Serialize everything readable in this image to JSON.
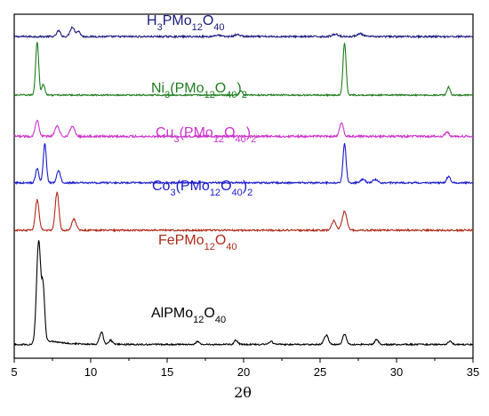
{
  "chart_data": {
    "type": "line",
    "xlabel": "2θ",
    "ylabel": "",
    "xlim": [
      5,
      35
    ],
    "x_ticks": [
      5,
      10,
      15,
      20,
      25,
      30,
      35
    ],
    "y_ticks": [],
    "grid": false,
    "legend": "none; series labeled directly on plot",
    "series": [
      {
        "name": "H3PMo12O40",
        "label": {
          "base": "H",
          "parts": [
            [
              "3",
              "sub"
            ],
            [
              "PMo",
              ""
            ],
            [
              "12",
              "sub"
            ],
            [
              "O",
              ""
            ],
            [
              "40",
              "sub"
            ]
          ]
        },
        "color": "#1a1a80",
        "baseline_offset": 0.935,
        "scale": 0.028,
        "noise": 0.005,
        "peaks": [
          {
            "x": 7.9,
            "h": 0.6,
            "w": 0.12
          },
          {
            "x": 8.8,
            "h": 1.0,
            "w": 0.14
          },
          {
            "x": 9.2,
            "h": 0.55,
            "w": 0.12
          },
          {
            "x": 18.3,
            "h": 0.15,
            "w": 0.2
          },
          {
            "x": 19.6,
            "h": 0.2,
            "w": 0.2
          },
          {
            "x": 26.0,
            "h": 0.25,
            "w": 0.2
          },
          {
            "x": 27.6,
            "h": 0.3,
            "w": 0.2
          }
        ]
      },
      {
        "name": "Ni3(PMo12O40)2",
        "label": {
          "base": "Ni",
          "parts": [
            [
              "3",
              "sub"
            ],
            [
              "(PMo",
              ""
            ],
            [
              "12",
              "sub"
            ],
            [
              "O",
              ""
            ],
            [
              "40",
              "sub"
            ],
            [
              ")",
              ""
            ],
            [
              "2",
              "sub"
            ]
          ]
        },
        "color": "#1e7d1e",
        "baseline_offset": 0.765,
        "scale": 0.155,
        "noise": 0.004,
        "peaks": [
          {
            "x": 6.5,
            "h": 1.0,
            "w": 0.1
          },
          {
            "x": 6.9,
            "h": 0.2,
            "w": 0.1
          },
          {
            "x": 19.8,
            "h": 0.08,
            "w": 0.1
          },
          {
            "x": 26.6,
            "h": 0.98,
            "w": 0.1
          },
          {
            "x": 33.4,
            "h": 0.15,
            "w": 0.1
          }
        ]
      },
      {
        "name": "Cu3(PMo12O40)2",
        "label": {
          "base": "Cu",
          "parts": [
            [
              "3",
              "sub"
            ],
            [
              "(PMo",
              ""
            ],
            [
              "12",
              "sub"
            ],
            [
              "O",
              ""
            ],
            [
              "40",
              "sub"
            ],
            [
              ")",
              ""
            ],
            [
              "2",
              "sub"
            ]
          ]
        },
        "color": "#cc33cc",
        "baseline_offset": 0.645,
        "scale": 0.065,
        "noise": 0.006,
        "peaks": [
          {
            "x": 6.5,
            "h": 0.75,
            "w": 0.12
          },
          {
            "x": 7.8,
            "h": 0.45,
            "w": 0.15
          },
          {
            "x": 8.8,
            "h": 0.45,
            "w": 0.15
          },
          {
            "x": 26.4,
            "h": 0.6,
            "w": 0.12
          },
          {
            "x": 33.3,
            "h": 0.2,
            "w": 0.12
          }
        ]
      },
      {
        "name": "Co3(PMo12O40)2",
        "label": {
          "base": "Co",
          "parts": [
            [
              "3",
              "sub"
            ],
            [
              "(PMo",
              ""
            ],
            [
              "12",
              "sub"
            ],
            [
              "O",
              ""
            ],
            [
              "40",
              "sub"
            ],
            [
              ")",
              ""
            ],
            [
              "2",
              "sub"
            ]
          ]
        },
        "color": "#1a1acc",
        "baseline_offset": 0.51,
        "scale": 0.12,
        "noise": 0.005,
        "peaks": [
          {
            "x": 6.5,
            "h": 0.35,
            "w": 0.1
          },
          {
            "x": 7.0,
            "h": 0.95,
            "w": 0.1
          },
          {
            "x": 7.9,
            "h": 0.3,
            "w": 0.12
          },
          {
            "x": 26.6,
            "h": 0.95,
            "w": 0.1
          },
          {
            "x": 27.8,
            "h": 0.08,
            "w": 0.15
          },
          {
            "x": 28.6,
            "h": 0.08,
            "w": 0.15
          },
          {
            "x": 33.4,
            "h": 0.15,
            "w": 0.12
          }
        ]
      },
      {
        "name": "FePMo12O40",
        "label": {
          "base": "FePMo",
          "parts": [
            [
              "12",
              "sub"
            ],
            [
              "O",
              ""
            ],
            [
              "40",
              "sub"
            ]
          ]
        },
        "color": "#b02a1a",
        "baseline_offset": 0.372,
        "scale": 0.11,
        "noise": 0.005,
        "peaks": [
          {
            "x": 6.5,
            "h": 0.8,
            "w": 0.12
          },
          {
            "x": 7.8,
            "h": 1.0,
            "w": 0.12
          },
          {
            "x": 8.9,
            "h": 0.3,
            "w": 0.14
          },
          {
            "x": 25.9,
            "h": 0.25,
            "w": 0.15
          },
          {
            "x": 26.6,
            "h": 0.5,
            "w": 0.15
          }
        ]
      },
      {
        "name": "AlPMo12O40",
        "label": {
          "base": "AlPMo",
          "parts": [
            [
              "12",
              "sub"
            ],
            [
              "O",
              ""
            ],
            [
              "40",
              "sub"
            ]
          ]
        },
        "color": "#000000",
        "baseline_offset": 0.04,
        "scale": 0.3,
        "noise": 0.004,
        "background": 0.05,
        "peaks": [
          {
            "x": 6.6,
            "h": 1.0,
            "w": 0.14
          },
          {
            "x": 6.9,
            "h": 0.45,
            "w": 0.1
          },
          {
            "x": 10.7,
            "h": 0.12,
            "w": 0.12
          },
          {
            "x": 11.3,
            "h": 0.04,
            "w": 0.12
          },
          {
            "x": 17.0,
            "h": 0.03,
            "w": 0.12
          },
          {
            "x": 19.5,
            "h": 0.04,
            "w": 0.12
          },
          {
            "x": 21.8,
            "h": 0.03,
            "w": 0.12
          },
          {
            "x": 25.4,
            "h": 0.09,
            "w": 0.14
          },
          {
            "x": 26.6,
            "h": 0.1,
            "w": 0.12
          },
          {
            "x": 28.7,
            "h": 0.05,
            "w": 0.12
          },
          {
            "x": 33.5,
            "h": 0.03,
            "w": 0.12
          }
        ]
      }
    ]
  }
}
